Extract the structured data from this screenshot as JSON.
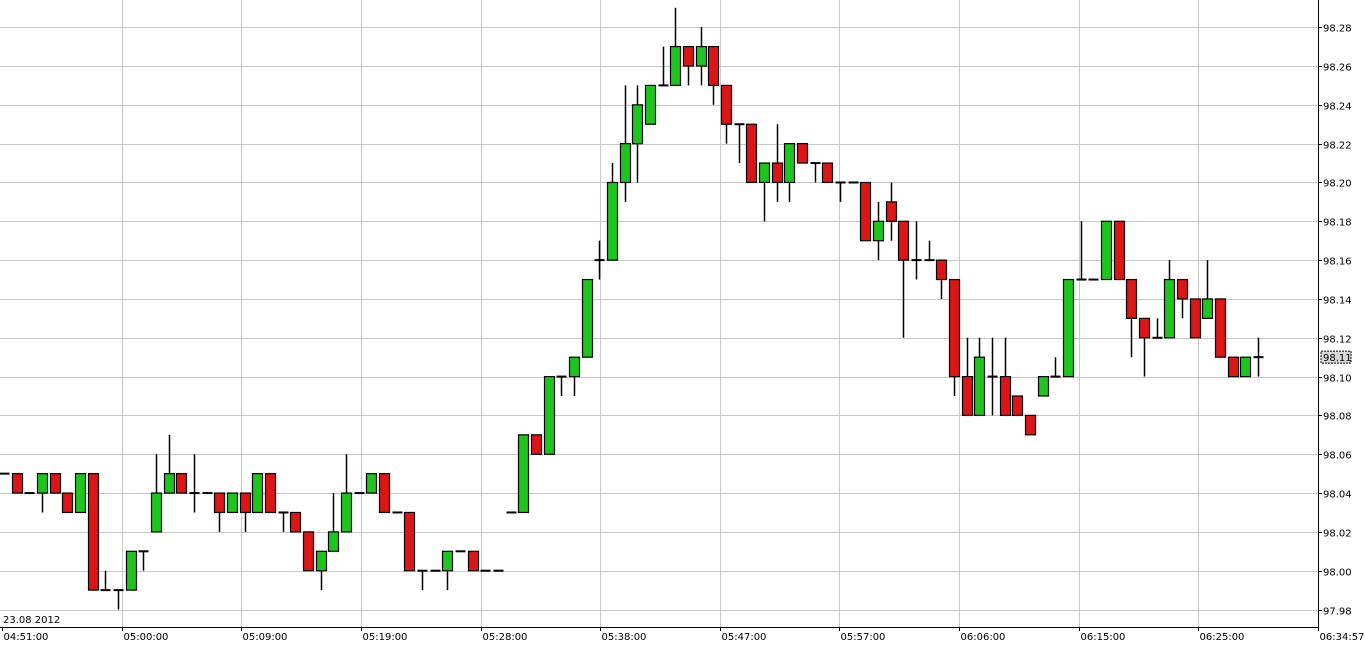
{
  "chart_data": {
    "type": "candlestick",
    "date_label": "23.08 2012",
    "up_color": "#19c819",
    "down_color": "#e01414",
    "grid": true,
    "ylim": [
      97.971,
      98.294
    ],
    "yticks": [
      98.28,
      98.26,
      98.24,
      98.22,
      {
        "value": 98.2,
        "label": "98.20"
      },
      98.18,
      98.16,
      98.14,
      98.12,
      {
        "value": 98.1,
        "label": "98.10"
      },
      98.08,
      98.06,
      98.04,
      98.02,
      {
        "value": 98.0,
        "label": "98.00"
      },
      97.98
    ],
    "xticks": [
      "04:51:00",
      "05:00:00",
      "05:09:00",
      "05:19:00",
      "05:28:00",
      "05:38:00",
      "05:47:00",
      "05:57:00",
      "06:06:00",
      "06:15:00",
      "06:25:00",
      "06:34:57"
    ],
    "last_price": 98.11,
    "open": [
      98.05,
      98.05,
      98.04,
      98.04,
      98.05,
      98.04,
      98.03,
      98.05,
      97.99,
      97.99,
      97.99,
      98.01,
      98.02,
      98.04,
      98.05,
      98.04,
      98.04,
      98.04,
      98.03,
      98.04,
      98.03,
      98.05,
      98.03,
      98.03,
      98.02,
      98.0,
      98.01,
      98.02,
      98.04,
      98.04,
      98.05,
      98.03,
      98.03,
      98.0,
      98.0,
      98.0,
      98.01,
      98.01,
      98.0,
      98.0,
      98.03,
      98.03,
      98.07,
      98.06,
      98.1,
      98.1,
      98.11,
      98.16,
      98.16,
      98.2,
      98.22,
      98.23,
      98.25,
      98.25,
      98.27,
      98.26,
      98.27,
      98.25,
      98.23,
      98.23,
      98.2,
      98.21,
      98.2,
      98.22,
      98.21,
      98.21,
      98.2,
      98.2,
      98.2,
      98.17,
      98.19,
      98.18,
      98.16,
      98.16,
      98.16,
      98.15,
      98.1,
      98.08,
      98.1,
      98.1,
      98.09,
      98.08,
      98.09,
      98.1,
      98.1,
      98.15,
      98.15,
      98.15,
      98.18,
      98.15,
      98.13,
      98.12,
      98.12,
      98.15,
      98.14,
      98.13,
      98.14,
      98.11,
      98.1,
      98.11
    ],
    "high": [
      98.05,
      98.05,
      98.04,
      98.05,
      98.05,
      98.04,
      98.05,
      98.05,
      98.0,
      97.99,
      98.01,
      98.01,
      98.06,
      98.07,
      98.05,
      98.06,
      98.04,
      98.04,
      98.04,
      98.04,
      98.05,
      98.05,
      98.03,
      98.03,
      98.02,
      98.01,
      98.04,
      98.06,
      98.04,
      98.05,
      98.05,
      98.03,
      98.03,
      98.0,
      98.0,
      98.01,
      98.01,
      98.01,
      98.0,
      98.0,
      98.03,
      98.07,
      98.07,
      98.1,
      98.1,
      98.11,
      98.15,
      98.17,
      98.21,
      98.25,
      98.25,
      98.25,
      98.27,
      98.29,
      98.27,
      98.28,
      98.27,
      98.25,
      98.23,
      98.23,
      98.21,
      98.23,
      98.22,
      98.22,
      98.21,
      98.21,
      98.2,
      98.2,
      98.2,
      98.19,
      98.2,
      98.18,
      98.18,
      98.17,
      98.16,
      98.15,
      98.12,
      98.12,
      98.12,
      98.12,
      98.09,
      98.08,
      98.1,
      98.11,
      98.15,
      98.18,
      98.15,
      98.18,
      98.18,
      98.15,
      98.13,
      98.13,
      98.16,
      98.15,
      98.14,
      98.16,
      98.14,
      98.11,
      98.11,
      98.12
    ],
    "low": [
      98.05,
      98.04,
      98.04,
      98.03,
      98.04,
      98.03,
      98.03,
      97.99,
      97.99,
      97.98,
      97.99,
      98.0,
      98.02,
      98.04,
      98.04,
      98.03,
      98.04,
      98.02,
      98.03,
      98.02,
      98.03,
      98.03,
      98.02,
      98.02,
      98.0,
      97.99,
      98.01,
      98.02,
      98.04,
      98.04,
      98.03,
      98.03,
      98.0,
      97.99,
      98.0,
      97.99,
      98.01,
      98.0,
      98.0,
      98.0,
      98.03,
      98.03,
      98.06,
      98.06,
      98.09,
      98.09,
      98.11,
      98.15,
      98.16,
      98.19,
      98.2,
      98.23,
      98.25,
      98.25,
      98.25,
      98.25,
      98.24,
      98.22,
      98.21,
      98.2,
      98.18,
      98.19,
      98.19,
      98.21,
      98.2,
      98.2,
      98.19,
      98.2,
      98.17,
      98.16,
      98.17,
      98.12,
      98.15,
      98.16,
      98.14,
      98.09,
      98.08,
      98.08,
      98.08,
      98.08,
      98.08,
      98.07,
      98.09,
      98.1,
      98.1,
      98.15,
      98.15,
      98.15,
      98.15,
      98.11,
      98.1,
      98.12,
      98.12,
      98.13,
      98.12,
      98.13,
      98.11,
      98.1,
      98.1,
      98.1
    ],
    "close": [
      98.05,
      98.04,
      98.04,
      98.05,
      98.04,
      98.03,
      98.05,
      97.99,
      97.99,
      97.99,
      98.01,
      98.01,
      98.04,
      98.05,
      98.04,
      98.04,
      98.04,
      98.03,
      98.04,
      98.03,
      98.05,
      98.03,
      98.03,
      98.02,
      98.0,
      98.01,
      98.02,
      98.04,
      98.04,
      98.05,
      98.03,
      98.03,
      98.0,
      98.0,
      98.0,
      98.01,
      98.01,
      98.0,
      98.0,
      98.0,
      98.03,
      98.07,
      98.06,
      98.1,
      98.1,
      98.11,
      98.15,
      98.16,
      98.2,
      98.22,
      98.24,
      98.25,
      98.25,
      98.27,
      98.26,
      98.27,
      98.25,
      98.23,
      98.23,
      98.2,
      98.21,
      98.2,
      98.22,
      98.21,
      98.21,
      98.2,
      98.2,
      98.2,
      98.17,
      98.18,
      98.18,
      98.16,
      98.16,
      98.16,
      98.15,
      98.1,
      98.08,
      98.11,
      98.1,
      98.08,
      98.08,
      98.07,
      98.1,
      98.1,
      98.15,
      98.15,
      98.15,
      98.18,
      98.15,
      98.13,
      98.12,
      98.12,
      98.15,
      98.14,
      98.12,
      98.14,
      98.11,
      98.1,
      98.11,
      98.11
    ]
  }
}
